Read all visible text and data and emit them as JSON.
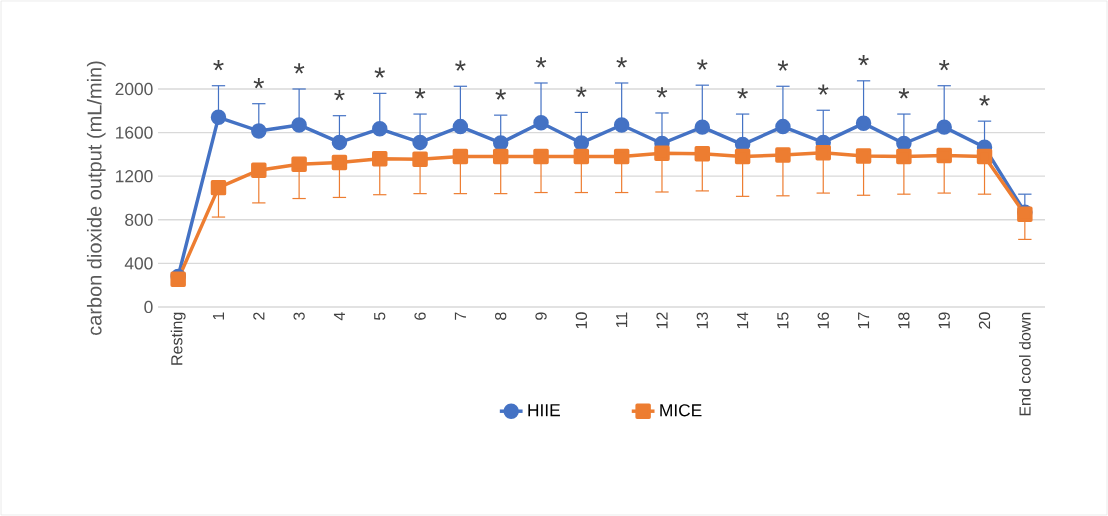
{
  "chart_data": {
    "type": "line",
    "ylabel": "carbon dioxide output (mL/min)",
    "categories": [
      "Resting",
      "1",
      "2",
      "3",
      "4",
      "5",
      "6",
      "7",
      "8",
      "9",
      "10",
      "11",
      "12",
      "13",
      "14",
      "15",
      "16",
      "17",
      "18",
      "19",
      "20",
      "End cool down"
    ],
    "series": [
      {
        "name": "HIIE",
        "color": "#4472c4",
        "marker": "circle",
        "values": [
          280,
          1740,
          1615,
          1670,
          1510,
          1635,
          1510,
          1655,
          1505,
          1690,
          1505,
          1670,
          1500,
          1650,
          1490,
          1655,
          1510,
          1685,
          1500,
          1650,
          1465,
          870
        ],
        "errors": [
          null,
          [
            1740,
            2030
          ],
          [
            1615,
            1865
          ],
          [
            1670,
            2000
          ],
          [
            1510,
            1755
          ],
          [
            1635,
            1960
          ],
          [
            1510,
            1770
          ],
          [
            1655,
            2025
          ],
          [
            1505,
            1760
          ],
          [
            1690,
            2055
          ],
          [
            1505,
            1785
          ],
          [
            1670,
            2055
          ],
          [
            1500,
            1780
          ],
          [
            1650,
            2035
          ],
          [
            1490,
            1770
          ],
          [
            1655,
            2025
          ],
          [
            1510,
            1805
          ],
          [
            1685,
            2075
          ],
          [
            1500,
            1770
          ],
          [
            1650,
            2030
          ],
          [
            1465,
            1705
          ],
          [
            870,
            1035
          ]
        ]
      },
      {
        "name": "MICE",
        "color": "#ed7d31",
        "marker": "square",
        "values": [
          255,
          1095,
          1255,
          1310,
          1325,
          1360,
          1355,
          1380,
          1380,
          1380,
          1380,
          1380,
          1410,
          1405,
          1380,
          1395,
          1415,
          1385,
          1380,
          1390,
          1380,
          850
        ],
        "errors": [
          null,
          [
            825,
            1095
          ],
          [
            955,
            1255
          ],
          [
            995,
            1310
          ],
          [
            1005,
            1325
          ],
          [
            1030,
            1360
          ],
          [
            1040,
            1355
          ],
          [
            1040,
            1380
          ],
          [
            1040,
            1380
          ],
          [
            1050,
            1380
          ],
          [
            1050,
            1380
          ],
          [
            1050,
            1380
          ],
          [
            1055,
            1410
          ],
          [
            1065,
            1405
          ],
          [
            1015,
            1380
          ],
          [
            1020,
            1395
          ],
          [
            1045,
            1415
          ],
          [
            1025,
            1385
          ],
          [
            1035,
            1380
          ],
          [
            1045,
            1390
          ],
          [
            1035,
            1380
          ],
          [
            620,
            850
          ]
        ]
      }
    ],
    "ylim": [
      0,
      2000
    ],
    "yticks": [
      0,
      400,
      800,
      1200,
      1600,
      2000
    ],
    "grid": "y",
    "legend": "bottom",
    "line_style": "solid",
    "annotations": [
      "*",
      "*",
      "*",
      "*",
      "*",
      "*",
      "*",
      "*",
      "*",
      "*",
      "*",
      "*",
      "*",
      "*",
      "*",
      "*",
      "*",
      "*",
      "*",
      "*"
    ]
  }
}
